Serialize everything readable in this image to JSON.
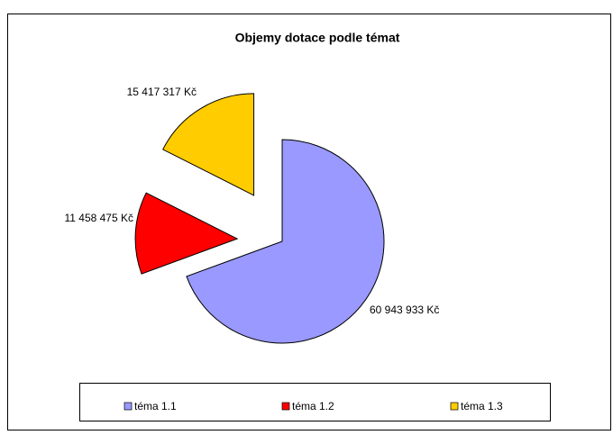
{
  "chart_data": {
    "type": "pie",
    "title": "Objemy dotace podle témat",
    "categories": [
      "téma 1.1",
      "téma 1.2",
      "téma 1.3"
    ],
    "values": [
      60943933,
      11458475,
      15417317
    ],
    "value_labels": [
      "60 943 933 Kč",
      "11 458 475 Kč",
      "15 417 317 Kč"
    ],
    "colors": [
      "#9999ff",
      "#ff0000",
      "#ffcc00"
    ],
    "legend": "bottom"
  }
}
